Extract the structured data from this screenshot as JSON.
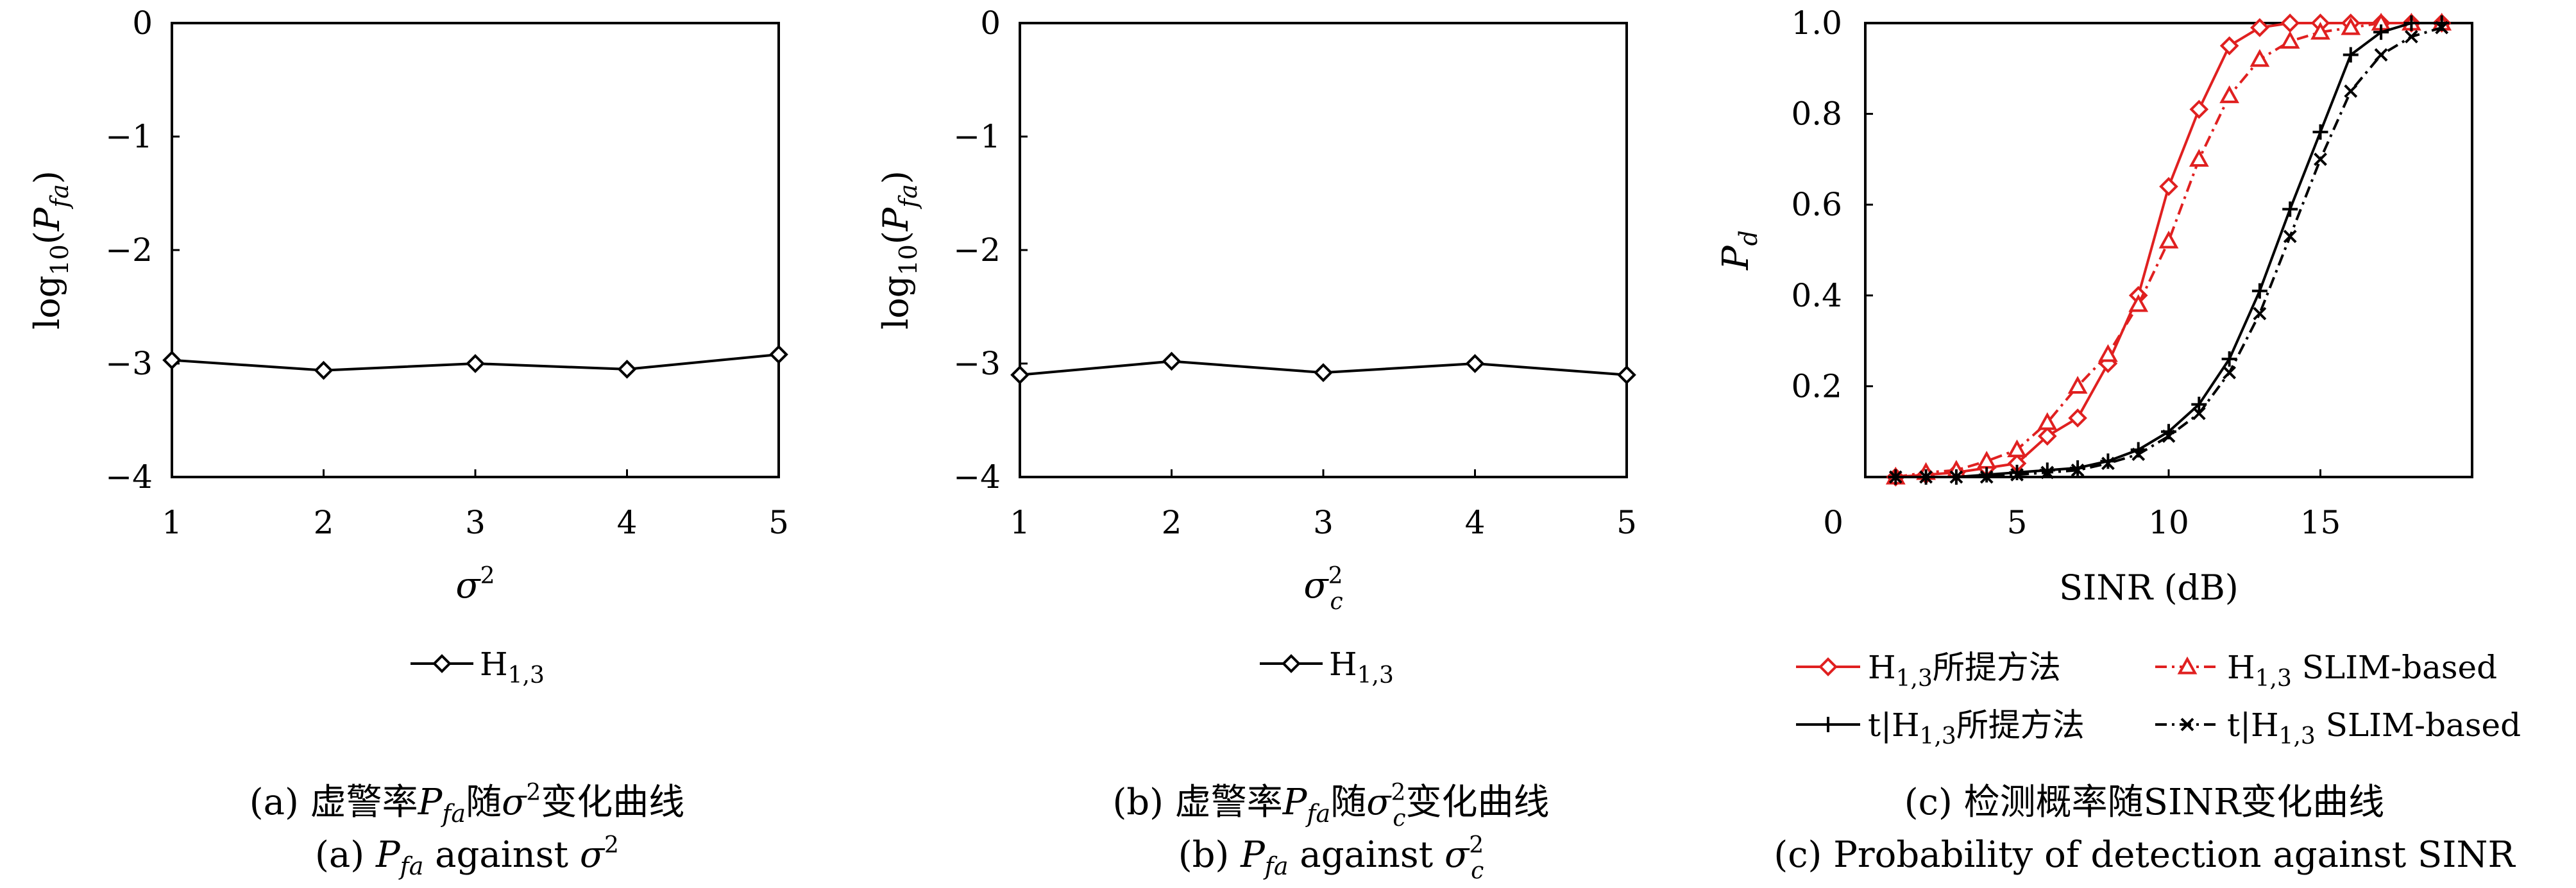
{
  "chart_data": [
    {
      "id": "a",
      "type": "line",
      "xlabel": "σ²",
      "ylabel": "log10(Pfa)",
      "xlim": [
        1,
        5
      ],
      "ylim": [
        -4,
        0
      ],
      "xticks": [
        "1",
        "2",
        "3",
        "4",
        "5"
      ],
      "yticks": [
        "0",
        "−1",
        "−2",
        "−3",
        "−4"
      ],
      "series": [
        {
          "name": "H1,3",
          "marker": "diamond",
          "color": "#000000",
          "x": [
            1,
            2,
            3,
            4,
            5
          ],
          "y": [
            -2.97,
            -3.06,
            -3.0,
            -3.05,
            -2.92
          ]
        }
      ],
      "caption_cn": "(a) 虚警率Pfa随σ²变化曲线",
      "caption_en": "(a) Pfa against σ²"
    },
    {
      "id": "b",
      "type": "line",
      "xlabel": "σc²",
      "ylabel": "log10(Pfa)",
      "xlim": [
        1,
        5
      ],
      "ylim": [
        -4,
        0
      ],
      "xticks": [
        "1",
        "2",
        "3",
        "4",
        "5"
      ],
      "yticks": [
        "0",
        "−1",
        "−2",
        "−3",
        "−4"
      ],
      "series": [
        {
          "name": "H1,3",
          "marker": "diamond",
          "color": "#000000",
          "x": [
            1,
            2,
            3,
            4,
            5
          ],
          "y": [
            -3.1,
            -2.98,
            -3.08,
            -3.0,
            -3.1
          ]
        }
      ],
      "caption_cn": "(b) 虚警率Pfa随σc²变化曲线",
      "caption_en": "(b) Pfa against σc²"
    },
    {
      "id": "c",
      "type": "line",
      "xlabel": "SINR (dB)",
      "ylabel": "Pd",
      "xlim": [
        0,
        20
      ],
      "ylim": [
        0,
        1
      ],
      "xticks": [
        "0",
        "5",
        "10",
        "15"
      ],
      "yticks": [
        "1.0",
        "0.8",
        "0.6",
        "0.4",
        "0.2"
      ],
      "x": [
        1,
        2,
        3,
        4,
        5,
        6,
        7,
        8,
        9,
        10,
        11,
        12,
        13,
        14,
        15,
        16,
        17,
        18,
        19
      ],
      "series": [
        {
          "name": "H1,3所提方法",
          "color": "#e02020",
          "dash": "solid",
          "marker": "diamond",
          "y": [
            0.0,
            0.005,
            0.01,
            0.02,
            0.03,
            0.09,
            0.13,
            0.25,
            0.4,
            0.64,
            0.81,
            0.95,
            0.99,
            1.0,
            1.0,
            1.0,
            1.0,
            1.0,
            1.0
          ]
        },
        {
          "name": "H1,3 SLIM-based",
          "color": "#e02020",
          "dash": "dashdot",
          "marker": "triangle",
          "y": [
            0.0,
            0.01,
            0.015,
            0.035,
            0.06,
            0.12,
            0.2,
            0.27,
            0.38,
            0.52,
            0.7,
            0.84,
            0.92,
            0.96,
            0.98,
            0.99,
            1.0,
            1.0,
            1.0
          ]
        },
        {
          "name": "t|H1,3所提方法",
          "color": "#000000",
          "dash": "solid",
          "marker": "plus",
          "y": [
            0.0,
            0.0,
            0.0,
            0.005,
            0.01,
            0.015,
            0.02,
            0.035,
            0.06,
            0.1,
            0.16,
            0.26,
            0.41,
            0.59,
            0.76,
            0.93,
            0.98,
            1.0,
            1.0
          ]
        },
        {
          "name": "t|H1,3 SLIM-based",
          "color": "#000000",
          "dash": "dashdot",
          "marker": "cross",
          "y": [
            0.0,
            0.0,
            0.0,
            0.0,
            0.005,
            0.01,
            0.015,
            0.03,
            0.05,
            0.09,
            0.14,
            0.23,
            0.36,
            0.53,
            0.7,
            0.85,
            0.93,
            0.97,
            0.99
          ]
        }
      ],
      "caption_cn": "(c) 检测概率随SINR变化曲线",
      "caption_en": "(c) Probability of detection against SINR"
    }
  ]
}
